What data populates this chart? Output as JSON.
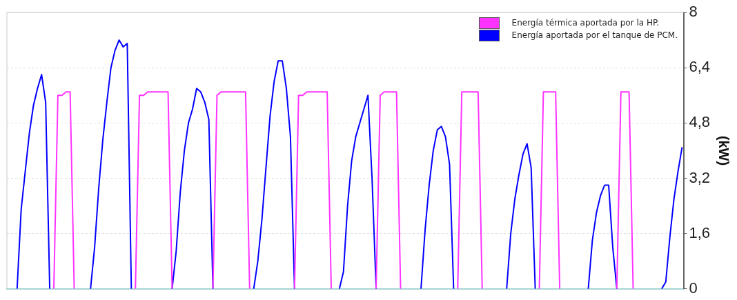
{
  "chart_data": {
    "type": "line",
    "ylabel": "(kW)",
    "categories": [
      null,
      null,
      null,
      null,
      null,
      null,
      null,
      null,
      null,
      null,
      null,
      null,
      null,
      null,
      null,
      null,
      null,
      null,
      null,
      null,
      null,
      null,
      null,
      null,
      null,
      null,
      null,
      null,
      null,
      null,
      null,
      null,
      null,
      null,
      null,
      null,
      null,
      null,
      null,
      null,
      null,
      null,
      null,
      null,
      null,
      null,
      null,
      null,
      null,
      null,
      null,
      null,
      null,
      null,
      null,
      null,
      null,
      null,
      null,
      null,
      null,
      null,
      null,
      null,
      null,
      null,
      null,
      null,
      null,
      null,
      null,
      null,
      null,
      null,
      null,
      null,
      null,
      null,
      null,
      null,
      null,
      null,
      null,
      null,
      null,
      null,
      null,
      null,
      null,
      null,
      null,
      null,
      null,
      null,
      null,
      null,
      null,
      null,
      null,
      null,
      null,
      null,
      null,
      null,
      null,
      null,
      null,
      null,
      null,
      null,
      null,
      null,
      null,
      null,
      null,
      null,
      null,
      null,
      null,
      null,
      null,
      null,
      null,
      null,
      null,
      null,
      null,
      null,
      null,
      null,
      null,
      null,
      null,
      null,
      null,
      null,
      null,
      null,
      null,
      null,
      null,
      null,
      null,
      null,
      null,
      null,
      null,
      null,
      null,
      null,
      null,
      null,
      null,
      null,
      null,
      null,
      null,
      null,
      null,
      null,
      null,
      null,
      null,
      null,
      null,
      null
    ],
    "series": [
      {
        "name": "Energía térmica aportada por la HP.",
        "color": "#ff33ff",
        "values": [
          null,
          null,
          null,
          null,
          null,
          null,
          null,
          null,
          null,
          null,
          null,
          0,
          5.6,
          5.6,
          5.7,
          5.7,
          0,
          null,
          null,
          null,
          null,
          null,
          null,
          null,
          null,
          null,
          null,
          null,
          null,
          null,
          null,
          0,
          5.6,
          5.6,
          5.7,
          5.7,
          5.7,
          5.7,
          5.7,
          5.7,
          0,
          null,
          null,
          null,
          null,
          null,
          null,
          null,
          null,
          null,
          0,
          5.6,
          5.7,
          5.7,
          5.7,
          5.7,
          5.7,
          5.7,
          5.7,
          0,
          null,
          null,
          null,
          null,
          null,
          null,
          null,
          null,
          null,
          null,
          0,
          5.6,
          5.6,
          5.7,
          5.7,
          5.7,
          5.7,
          5.7,
          5.7,
          0,
          null,
          null,
          null,
          null,
          null,
          null,
          null,
          null,
          null,
          null,
          0,
          5.6,
          5.7,
          5.7,
          5.7,
          5.7,
          0,
          null,
          null,
          null,
          null,
          null,
          null,
          null,
          null,
          null,
          null,
          null,
          null,
          null,
          0,
          5.7,
          5.7,
          5.7,
          5.7,
          5.7,
          0,
          null,
          null,
          null,
          null,
          null,
          null,
          null,
          null,
          null,
          null,
          null,
          null,
          null,
          0,
          5.7,
          5.7,
          5.7,
          5.7,
          0,
          null,
          null,
          null,
          null,
          null,
          null,
          null,
          null,
          null,
          null,
          null,
          null,
          null,
          0,
          5.7,
          5.7,
          5.7,
          0,
          null,
          null,
          null,
          null,
          null,
          null,
          null,
          null,
          null,
          null,
          null,
          null
        ]
      },
      {
        "name": "Energía aportada por el tanque de PCM.",
        "color": "#0000ff",
        "values": [
          null,
          null,
          0,
          2.3,
          3.4,
          4.5,
          5.3,
          5.8,
          6.2,
          5.4,
          0,
          null,
          null,
          null,
          null,
          null,
          null,
          null,
          null,
          null,
          0,
          1.2,
          2.9,
          4.3,
          5.4,
          6.4,
          6.9,
          7.2,
          7.0,
          7.1,
          0,
          null,
          null,
          null,
          null,
          null,
          null,
          null,
          null,
          null,
          0,
          1.1,
          2.8,
          4.0,
          4.8,
          5.2,
          5.8,
          5.7,
          5.4,
          4.9,
          0,
          null,
          null,
          null,
          null,
          null,
          null,
          null,
          null,
          null,
          0,
          0.8,
          2.0,
          3.5,
          5.0,
          6.0,
          6.6,
          6.6,
          5.8,
          4.4,
          0,
          null,
          null,
          null,
          null,
          null,
          null,
          null,
          null,
          null,
          null,
          0,
          0.5,
          2.4,
          3.7,
          4.4,
          4.8,
          5.2,
          5.6,
          3.2,
          0,
          null,
          null,
          null,
          null,
          null,
          null,
          null,
          null,
          null,
          null,
          0,
          1.7,
          3.0,
          4.0,
          4.6,
          4.7,
          4.4,
          3.6,
          0,
          null,
          null,
          null,
          null,
          null,
          null,
          null,
          null,
          null,
          null,
          null,
          null,
          0,
          1.6,
          2.6,
          3.3,
          3.9,
          4.2,
          3.5,
          0,
          null,
          null,
          null,
          null,
          null,
          null,
          null,
          null,
          null,
          null,
          null,
          null,
          0,
          1.4,
          2.2,
          2.7,
          3.0,
          3.0,
          1.2,
          0,
          null,
          null,
          null,
          null,
          null,
          null,
          null,
          null,
          null,
          null,
          0,
          0.2,
          1.5,
          2.6,
          3.4,
          4.1
        ]
      }
    ],
    "ylim": [
      0,
      8
    ],
    "yticks": [
      0,
      {
        "value": 1.6,
        "label": "1,6"
      },
      {
        "value": 3.2,
        "label": "3,2"
      },
      {
        "value": 4.8,
        "label": "4,8"
      },
      {
        "value": 6.4,
        "label": "6,4"
      },
      8
    ],
    "grid": "y",
    "legend": "top right",
    "tick_labels": "y"
  }
}
